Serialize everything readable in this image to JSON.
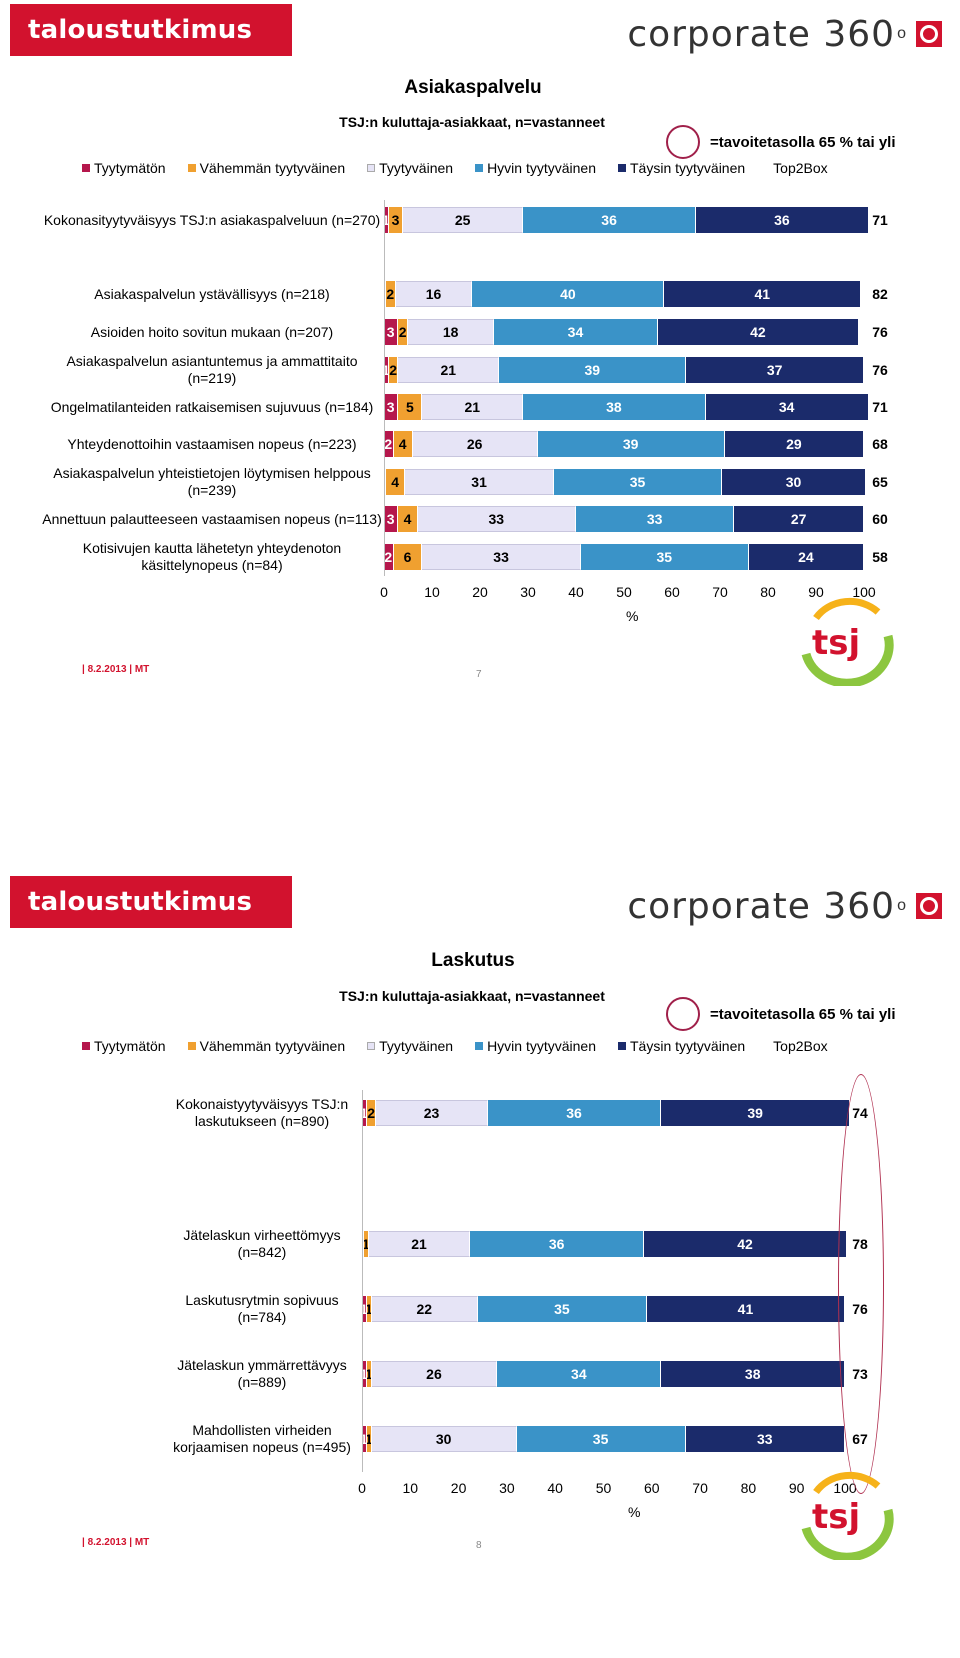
{
  "colors": {
    "tyytymaton": "#b5174c",
    "vahemman": "#f0a030",
    "tyytyvainen": "#e6e4f6",
    "hyvin": "#3a93c8",
    "taysin": "#1b2b6b",
    "brand": "#d2122e"
  },
  "header": {
    "brand": "taloustutkimus oy",
    "corporate": "corporate 360",
    "degree": "o"
  },
  "legend": {
    "items": [
      "Tyytymätön",
      "Vähemmän tyytyväinen",
      "Tyytyväinen",
      "Hyvin tyytyväinen",
      "Täysin tyytyväinen"
    ],
    "top2box": "Top2Box"
  },
  "target_note": "=tavoitetasolla 65 % tai yli",
  "slides": [
    {
      "title": "Asiakaspalvelu",
      "subtitle": "TSJ:n kuluttaja-asiakkaat, n=vastanneet",
      "footer": "| 8.2.2013 | MT",
      "page": "7",
      "xlabel": "%",
      "ticks": [
        "0",
        "10",
        "20",
        "30",
        "40",
        "50",
        "60",
        "70",
        "80",
        "90",
        "100"
      ]
    },
    {
      "title": "Laskutus",
      "subtitle": "TSJ:n kuluttaja-asiakkaat, n=vastanneet",
      "footer": "| 8.2.2013 | MT",
      "page": "8",
      "xlabel": "%",
      "ticks": [
        "0",
        "10",
        "20",
        "30",
        "40",
        "50",
        "60",
        "70",
        "80",
        "90",
        "100"
      ]
    }
  ],
  "chart_data": [
    {
      "type": "bar",
      "orientation": "horizontal-stacked",
      "title": "Asiakaspalvelu",
      "subtitle": "TSJ:n kuluttaja-asiakkaat, n=vastanneet",
      "xlabel": "%",
      "xlim": [
        0,
        100
      ],
      "series_names": [
        "Tyytymätön",
        "Vähemmän tyytyväinen",
        "Tyytyväinen",
        "Hyvin tyytyväinen",
        "Täysin tyytyväinen"
      ],
      "categories": [
        "Kokonasityytyväisyys TSJ:n asiakaspalveluun (n=270)",
        "Asiakaspalvelun ystävällisyys (n=218)",
        "Asioiden hoito sovitun mukaan (n=207)",
        "Asiakaspalvelun asiantuntemus ja ammattitaito (n=219)",
        "Ongelmatilanteiden ratkaisemisen sujuvuus (n=184)",
        "Yhteydenottoihin vastaamisen nopeus (n=223)",
        "Asiakaspalvelun yhteistietojen löytymisen helppous (n=239)",
        "Annettuun palautteeseen vastaamisen nopeus (n=113)",
        "Kotisivujen kautta lähetetyn yhteydenoton käsittelynopeus (n=84)"
      ],
      "values": [
        [
          1,
          3,
          25,
          36,
          36
        ],
        [
          0,
          2,
          16,
          40,
          41
        ],
        [
          3,
          2,
          18,
          34,
          42
        ],
        [
          1,
          2,
          21,
          39,
          37
        ],
        [
          3,
          5,
          21,
          38,
          34
        ],
        [
          2,
          4,
          26,
          39,
          29
        ],
        [
          0,
          4,
          31,
          35,
          30
        ],
        [
          3,
          4,
          33,
          33,
          27
        ],
        [
          2,
          6,
          33,
          35,
          24
        ]
      ],
      "top2box": [
        71,
        82,
        76,
        76,
        71,
        68,
        65,
        60,
        58
      ]
    },
    {
      "type": "bar",
      "orientation": "horizontal-stacked",
      "title": "Laskutus",
      "subtitle": "TSJ:n kuluttaja-asiakkaat, n=vastanneet",
      "xlabel": "%",
      "xlim": [
        0,
        100
      ],
      "series_names": [
        "Tyytymätön",
        "Vähemmän tyytyväinen",
        "Tyytyväinen",
        "Hyvin tyytyväinen",
        "Täysin tyytyväinen"
      ],
      "categories": [
        "Kokonaistyytyväisyys TSJ:n laskutukseen (n=890)",
        "Jätelaskun virheettömyys (n=842)",
        "Laskutusrytmin sopivuus (n=784)",
        "Jätelaskun ymmärrettävyys (n=889)",
        "Mahdollisten virheiden korjaamisen nopeus (n=495)"
      ],
      "values": [
        [
          1,
          2,
          23,
          36,
          39
        ],
        [
          0,
          1,
          21,
          36,
          42
        ],
        [
          1,
          1,
          22,
          35,
          41
        ],
        [
          1,
          1,
          26,
          34,
          38
        ],
        [
          1,
          1,
          30,
          35,
          33
        ]
      ],
      "top2box": [
        74,
        78,
        76,
        73,
        67
      ]
    }
  ]
}
